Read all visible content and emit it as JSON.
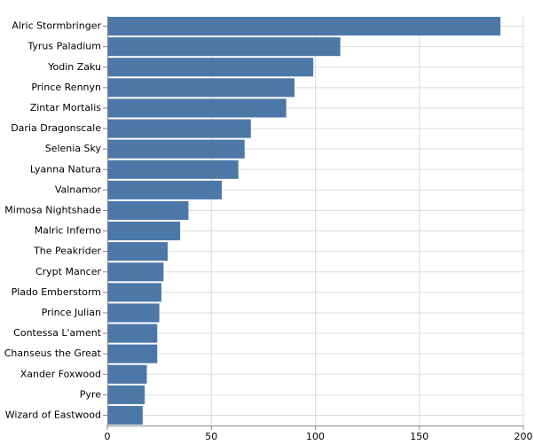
{
  "chart_data": {
    "type": "bar",
    "orientation": "horizontal",
    "categories": [
      "Alric Stormbringer",
      "Tyrus Paladium",
      "Yodin Zaku",
      "Prince Rennyn",
      "Zintar Mortalis",
      "Daria Dragonscale",
      "Selenia Sky",
      "Lyanna Natura",
      "Valnamor",
      "Mimosa Nightshade",
      "Malric Inferno",
      "The Peakrider",
      "Crypt Mancer",
      "Plado Emberstorm",
      "Prince Julian",
      "Contessa L'ament",
      "Chanseus the Great",
      "Xander Foxwood",
      "Pyre",
      "Wizard of Eastwood"
    ],
    "values": [
      189,
      112,
      99,
      90,
      86,
      69,
      66,
      63,
      55,
      39,
      35,
      29,
      27,
      26,
      25,
      24,
      24,
      19,
      18,
      17
    ],
    "title": "",
    "xlabel": "",
    "ylabel": "",
    "xlim": [
      0,
      200
    ],
    "xticks": [
      "0",
      "50",
      "100",
      "150",
      "200"
    ],
    "grid": true,
    "bar_color": "#4c78a8",
    "grid_color": "#dddddd",
    "axis_color": "#888888"
  }
}
